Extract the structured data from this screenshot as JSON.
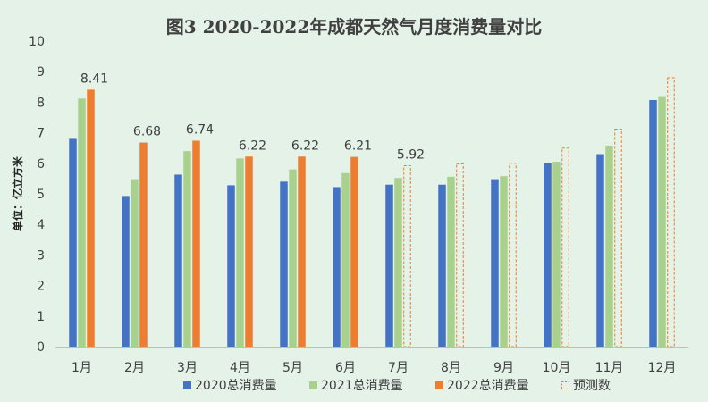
{
  "chart_data": {
    "type": "bar",
    "title": "图3   2020-2022年成都天然气月度消费量对比",
    "ylabel": "单位：亿立方米",
    "xlabel": "",
    "ylim": [
      0,
      10
    ],
    "yticks": [
      "0",
      "1",
      "2",
      "3",
      "4",
      "5",
      "6",
      "7",
      "8",
      "9",
      "10"
    ],
    "categories": [
      "1月",
      "2月",
      "3月",
      "4月",
      "5月",
      "6月",
      "7月",
      "8月",
      "9月",
      "10月",
      "11月",
      "12月"
    ],
    "series": [
      {
        "name": "2020总消费量",
        "color": "#4472c4",
        "style": "solid",
        "values": [
          6.8,
          4.93,
          5.63,
          5.28,
          5.4,
          5.22,
          5.3,
          5.3,
          5.48,
          6.0,
          6.3,
          8.07
        ]
      },
      {
        "name": "2021总消费量",
        "color": "#a9d18e",
        "style": "solid",
        "values": [
          8.12,
          5.48,
          6.4,
          6.16,
          5.8,
          5.68,
          5.52,
          5.56,
          5.58,
          6.05,
          6.58,
          8.17
        ]
      },
      {
        "name": "2022总消费量",
        "color": "#ed7d31",
        "style": "solid",
        "values": [
          8.41,
          6.68,
          6.74,
          6.22,
          6.22,
          6.21,
          null,
          null,
          null,
          null,
          null,
          null
        ]
      },
      {
        "name": "预测数",
        "color": "#ed7d31",
        "style": "dashed",
        "values": [
          null,
          null,
          null,
          null,
          null,
          null,
          5.92,
          5.98,
          6.0,
          6.5,
          7.12,
          8.8
        ]
      }
    ],
    "data_labels": [
      {
        "category": "1月",
        "text": "8.41",
        "value": 8.41
      },
      {
        "category": "2月",
        "text": "6.68",
        "value": 6.68
      },
      {
        "category": "3月",
        "text": "6.74",
        "value": 6.74
      },
      {
        "category": "4月",
        "text": "6.22",
        "value": 6.22
      },
      {
        "category": "5月",
        "text": "6.22",
        "value": 6.22
      },
      {
        "category": "6月",
        "text": "6.21",
        "value": 6.21
      },
      {
        "category": "7月",
        "text": "5.92",
        "value": 5.92
      }
    ],
    "legend_position": "bottom",
    "grid": false
  }
}
